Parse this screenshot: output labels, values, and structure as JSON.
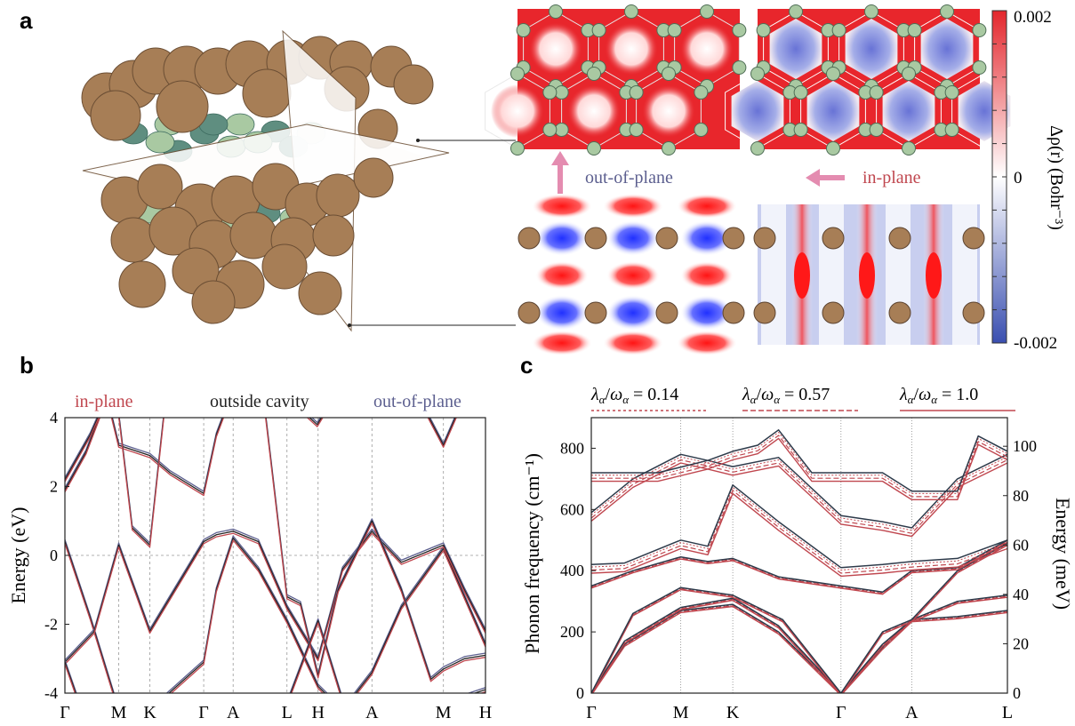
{
  "panels": {
    "a": "a",
    "b": "b",
    "c": "c"
  },
  "panel_a": {
    "labels": {
      "out_of_plane": "out-of-plane",
      "in_plane": "in-plane"
    },
    "colorbar": {
      "label": "Δρ(r) (Bohr⁻³)",
      "ticks": [
        "0.002",
        "0",
        "-0.002"
      ],
      "colors": {
        "high": "#e3262c",
        "mid": "#ffffff",
        "low": "#3a4fb0"
      }
    },
    "colors": {
      "atom_cu": "#a77e56",
      "atom_b": "#a9c9a2",
      "atom_b_dark": "#5f8e80",
      "arrow": "#e48cb0"
    }
  },
  "chart_data": [
    {
      "type": "line",
      "panel": "b",
      "title": "",
      "ylabel": "Energy (eV)",
      "xlabel": "",
      "ylim": [
        -4,
        4
      ],
      "yticks": [
        "4",
        "2",
        "0",
        "-2",
        "-4"
      ],
      "kpath": [
        "Γ",
        "M",
        "K",
        "Γ",
        "A",
        "L",
        "H",
        "A",
        "M",
        "H"
      ],
      "legend": [
        "in-plane",
        "outside cavity",
        "out-of-plane"
      ],
      "colors": {
        "in-plane": "#c0474f",
        "outside cavity": "#222222",
        "out-of-plane": "#5c5f8f"
      },
      "kpos": [
        0,
        0.128,
        0.202,
        0.33,
        0.4,
        0.528,
        0.602,
        0.73,
        0.9,
        1.0
      ],
      "series": [
        {
          "name": "band A",
          "x": [
            0,
            0.06,
            0.128,
            0.202,
            0.33,
            0.36,
            0.4,
            0.46,
            0.528,
            0.602,
            0.66,
            0.73,
            0.8,
            0.9,
            0.95,
            1.0
          ],
          "y": [
            0.4,
            -1.8,
            -4.5,
            -4.5,
            -3.1,
            -1.0,
            0.5,
            -0.4,
            -1.9,
            -3.8,
            -4.5,
            -3.4,
            -1.5,
            0.2,
            -1.2,
            -2.6
          ]
        },
        {
          "name": "band B",
          "x": [
            0,
            0.07,
            0.128,
            0.202,
            0.33,
            0.36,
            0.4,
            0.46,
            0.528,
            0.602,
            0.66,
            0.73,
            0.8,
            0.9,
            0.95,
            1.0
          ],
          "y": [
            -3.1,
            -2.2,
            0.3,
            -2.2,
            0.4,
            0.6,
            0.7,
            0.4,
            -1.5,
            -3.0,
            -0.4,
            0.7,
            -0.2,
            0.3,
            -1.0,
            -2.2
          ]
        },
        {
          "name": "band C",
          "x": [
            0,
            0.05,
            0.1,
            0.128,
            0.202,
            0.25,
            0.33,
            0.36,
            0.4,
            0.47,
            0.528,
            0.56,
            0.602,
            0.65,
            0.73,
            0.8,
            0.87,
            0.9,
            0.95,
            1.0
          ],
          "y": [
            1.9,
            3.0,
            4.6,
            3.2,
            2.9,
            2.4,
            1.8,
            3.5,
            4.8,
            4.8,
            -1.2,
            -1.4,
            -3.5,
            -1.0,
            1.0,
            -1.0,
            -3.6,
            -3.3,
            -3.0,
            -2.9
          ]
        },
        {
          "name": "band D",
          "x": [
            0,
            0.04,
            0.128,
            0.202,
            0.24,
            0.33,
            0.36,
            0.4,
            0.528,
            0.602,
            0.66,
            0.73,
            0.8,
            0.9,
            1.0
          ],
          "y": [
            -3.1,
            -4.5,
            -4.5,
            -4.6,
            -4.5,
            -4.5,
            -4.6,
            -4.6,
            -4.3,
            -1.9,
            -4.2,
            -4.6,
            -4.5,
            -4.3,
            -3.9
          ]
        },
        {
          "name": "band E",
          "x": [
            0,
            0.06,
            0.1,
            0.128,
            0.16,
            0.202,
            0.24,
            0.33,
            0.4,
            0.46,
            0.528,
            0.6,
            0.64,
            0.73,
            0.8,
            0.84,
            0.9,
            0.95,
            1.0
          ],
          "y": [
            2.2,
            3.5,
            4.6,
            4.1,
            0.8,
            0.3,
            4.6,
            4.6,
            4.6,
            4.6,
            4.6,
            3.8,
            4.6,
            4.6,
            4.6,
            4.6,
            3.2,
            4.6,
            4.6
          ]
        }
      ]
    },
    {
      "type": "line",
      "panel": "c",
      "title": "",
      "ylabel": "Phonon frequency (cm⁻¹)",
      "y2label": "Energy (meV)",
      "xlabel": "",
      "ylim": [
        0,
        900
      ],
      "yticks": [
        "0",
        "200",
        "400",
        "600",
        "800"
      ],
      "y2ticks": [
        "0",
        "20",
        "40",
        "60",
        "80",
        "100"
      ],
      "kpath": [
        "Γ",
        "M",
        "K",
        "Γ",
        "A",
        "L"
      ],
      "kpos": [
        0,
        0.215,
        0.34,
        0.6,
        0.77,
        1.0
      ],
      "legend": [
        "λα/ωα = 0.14",
        "λα/ωα = 0.57",
        "λα/ωα = 1.0"
      ],
      "legend_parts": [
        {
          "lhs": "λ",
          "sub1": "α",
          "slash": "/",
          "rhs": "ω",
          "sub2": "α",
          "eq": " = 0.14"
        },
        {
          "lhs": "λ",
          "sub1": "α",
          "slash": "/",
          "rhs": "ω",
          "sub2": "α",
          "eq": " = 0.57"
        },
        {
          "lhs": "λ",
          "sub1": "α",
          "slash": "/",
          "rhs": "ω",
          "sub2": "α",
          "eq": " = 1.0"
        }
      ],
      "colors": {
        "outside": "#2d3a4a",
        "cavity": "#c0474f"
      },
      "series": [
        {
          "name": "acoustic 1",
          "x": [
            0,
            0.08,
            0.215,
            0.34,
            0.45,
            0.6,
            0.7,
            0.77,
            0.88,
            1.0
          ],
          "y": [
            0,
            160,
            270,
            290,
            200,
            0,
            150,
            240,
            250,
            270
          ]
        },
        {
          "name": "acoustic 2",
          "x": [
            0,
            0.08,
            0.215,
            0.34,
            0.45,
            0.6,
            0.7,
            0.77,
            0.88,
            1.0
          ],
          "y": [
            0,
            170,
            280,
            310,
            220,
            0,
            160,
            240,
            300,
            320
          ]
        },
        {
          "name": "acoustic 3",
          "x": [
            0,
            0.1,
            0.215,
            0.34,
            0.46,
            0.6,
            0.7,
            0.77,
            0.88,
            1.0
          ],
          "y": [
            0,
            260,
            345,
            320,
            240,
            0,
            200,
            240,
            400,
            490
          ]
        },
        {
          "name": "optical 1",
          "x": [
            0,
            0.1,
            0.215,
            0.28,
            0.34,
            0.45,
            0.6,
            0.7,
            0.77,
            0.88,
            1.0
          ],
          "y": [
            350,
            400,
            445,
            430,
            440,
            380,
            350,
            330,
            400,
            410,
            500
          ]
        },
        {
          "name": "optical 2",
          "x": [
            0,
            0.08,
            0.215,
            0.28,
            0.34,
            0.45,
            0.6,
            0.7,
            0.77,
            0.88,
            1.0
          ],
          "y": [
            420,
            425,
            500,
            480,
            680,
            560,
            410,
            420,
            430,
            440,
            500
          ]
        },
        {
          "name": "optical 3",
          "x": [
            0,
            0.1,
            0.215,
            0.28,
            0.34,
            0.45,
            0.6,
            0.7,
            0.77,
            0.88,
            1.0
          ],
          "y": [
            590,
            700,
            780,
            760,
            740,
            770,
            580,
            560,
            540,
            700,
            780
          ]
        },
        {
          "name": "optical 4",
          "x": [
            0,
            0.06,
            0.16,
            0.28,
            0.34,
            0.4,
            0.45,
            0.53,
            0.6,
            0.7,
            0.77,
            0.88,
            0.93,
            1.0
          ],
          "y": [
            720,
            720,
            720,
            760,
            790,
            810,
            860,
            720,
            720,
            720,
            660,
            660,
            840,
            790
          ]
        }
      ]
    }
  ]
}
